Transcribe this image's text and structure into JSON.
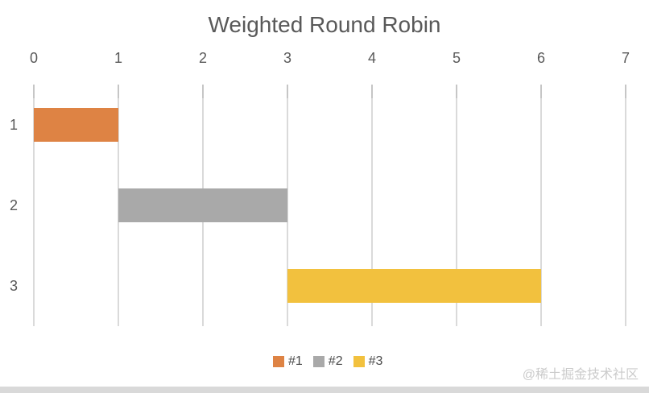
{
  "watermark": "@稀土掘金技术社区",
  "chart_data": {
    "type": "bar",
    "orientation": "horizontal",
    "title": "Weighted Round Robin",
    "categories": [
      "1",
      "2",
      "3"
    ],
    "x_ticks": [
      "0",
      "1",
      "2",
      "3",
      "4",
      "5",
      "6",
      "7"
    ],
    "xlim": [
      0,
      7
    ],
    "x_axis_position": "top",
    "grid": true,
    "bars": [
      {
        "category": "1",
        "series": "#1",
        "start": 0,
        "end": 1,
        "color": "#DE8344"
      },
      {
        "category": "2",
        "series": "#2",
        "start": 1,
        "end": 3,
        "color": "#A9A9A9"
      },
      {
        "category": "3",
        "series": "#3",
        "start": 3,
        "end": 6,
        "color": "#F2C13E"
      }
    ],
    "legend": {
      "position": "bottom",
      "entries": [
        {
          "label": "#1",
          "color": "#DE8344"
        },
        {
          "label": "#2",
          "color": "#A9A9A9"
        },
        {
          "label": "#3",
          "color": "#F2C13E"
        }
      ]
    },
    "colors": {
      "grid": "#D9D9D9",
      "tick": "#C6C6C6",
      "text": "#595959",
      "legend_text": "#494949",
      "watermark": "#CBCBCB",
      "scrollbar": "#D9D9D9"
    }
  }
}
